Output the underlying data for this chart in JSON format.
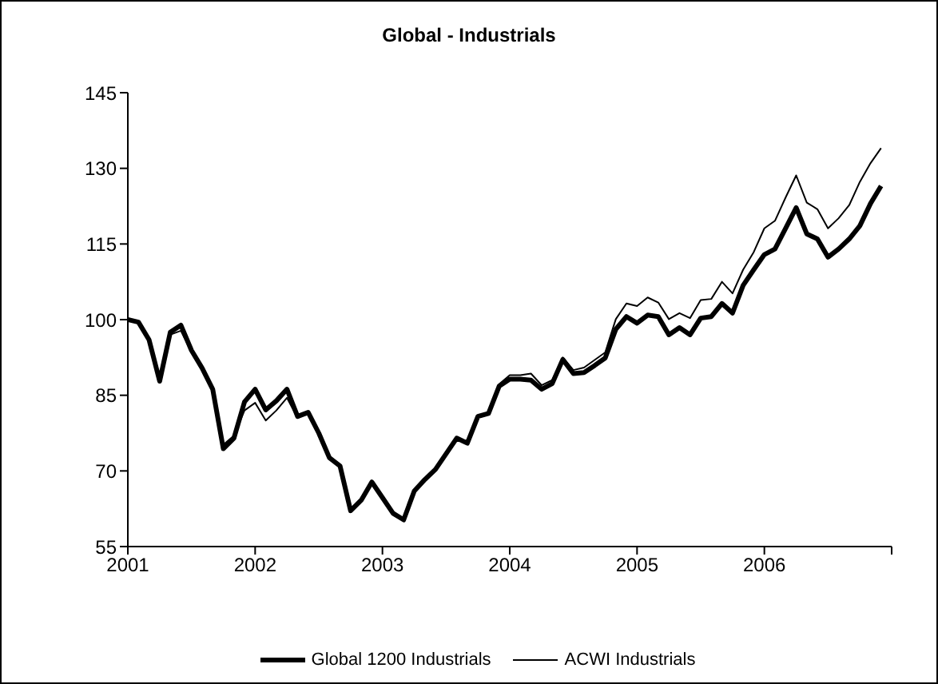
{
  "chart_data": {
    "type": "line",
    "title": "Global - Industrials",
    "x": [
      "2001-01",
      "2001-02",
      "2001-03",
      "2001-04",
      "2001-05",
      "2001-06",
      "2001-07",
      "2001-08",
      "2001-09",
      "2001-10",
      "2001-11",
      "2001-12",
      "2002-01",
      "2002-02",
      "2002-03",
      "2002-04",
      "2002-05",
      "2002-06",
      "2002-07",
      "2002-08",
      "2002-09",
      "2002-10",
      "2002-11",
      "2002-12",
      "2003-01",
      "2003-02",
      "2003-03",
      "2003-04",
      "2003-05",
      "2003-06",
      "2003-07",
      "2003-08",
      "2003-09",
      "2003-10",
      "2003-11",
      "2003-12",
      "2004-01",
      "2004-02",
      "2004-03",
      "2004-04",
      "2004-05",
      "2004-06",
      "2004-07",
      "2004-08",
      "2004-09",
      "2004-10",
      "2004-11",
      "2004-12",
      "2005-01",
      "2005-02",
      "2005-03",
      "2005-04",
      "2005-05",
      "2005-06",
      "2005-07",
      "2005-08",
      "2005-09",
      "2005-10",
      "2005-11",
      "2005-12",
      "2006-01",
      "2006-02",
      "2006-03",
      "2006-04",
      "2006-05",
      "2006-06",
      "2006-07",
      "2006-08",
      "2006-09",
      "2006-10",
      "2006-11",
      "2006-12"
    ],
    "series": [
      {
        "name": "Global 1200 Industrials",
        "color": "#000000",
        "values": [
          100,
          99.5,
          96,
          87.8,
          97.5,
          98.9,
          93.9,
          90.4,
          86.2,
          74.4,
          76.5,
          83.7,
          86.2,
          82.1,
          83.9,
          86.2,
          80.8,
          81.6,
          77.5,
          72.6,
          71,
          62.1,
          64.2,
          67.8,
          64.7,
          61.6,
          60.3,
          66,
          68.3,
          70.3,
          73.4,
          76.5,
          75.5,
          80.8,
          81.4,
          86.8,
          88.2,
          88.2,
          88,
          86.2,
          87.3,
          92.1,
          89.3,
          89.5,
          90.9,
          92.4,
          98.1,
          100.6,
          99.3,
          100.9,
          100.6,
          97,
          98.4,
          97,
          100.3,
          100.6,
          103.2,
          101.3,
          106.8,
          109.9,
          112.9,
          114,
          118.1,
          122.2,
          117,
          116,
          112.4,
          114,
          116,
          118.6,
          123,
          126.5
        ]
      },
      {
        "name": "ACWI Industrials",
        "color": "#000000",
        "values": [
          100,
          99.5,
          96,
          87.8,
          97,
          97.8,
          93.5,
          90,
          86,
          75.2,
          77,
          82,
          83.5,
          80,
          82,
          84.5,
          80.5,
          81.5,
          77.5,
          72.6,
          71,
          62.1,
          64.2,
          67.8,
          64.7,
          61.6,
          60.3,
          66,
          68.3,
          70.3,
          73.4,
          76.5,
          75.8,
          81,
          81.6,
          87.2,
          89,
          89,
          89.3,
          87,
          88,
          92.5,
          90,
          90.5,
          92,
          93.5,
          100.1,
          103.2,
          102.7,
          104.4,
          103.4,
          100.1,
          101.3,
          100.3,
          103.9,
          104.1,
          107.5,
          105.2,
          109.9,
          113.4,
          118.1,
          119.6,
          124.2,
          128.6,
          123.2,
          121.9,
          118.1,
          120.1,
          122.7,
          127.3,
          131,
          134
        ]
      }
    ],
    "xlim": [
      "2001-01",
      "2007-01"
    ],
    "xticks": [
      {
        "value": "2001-01",
        "label": "2001"
      },
      {
        "value": "2002-01",
        "label": "2002"
      },
      {
        "value": "2003-01",
        "label": "2003"
      },
      {
        "value": "2004-01",
        "label": "2004"
      },
      {
        "value": "2005-01",
        "label": "2005"
      },
      {
        "value": "2006-01",
        "label": "2006"
      },
      {
        "value": "2007-01",
        "label": null
      }
    ],
    "ylim": [
      55,
      145
    ],
    "yticks": [
      55,
      70,
      85,
      100,
      115,
      130,
      145
    ],
    "grid": false,
    "legend": "bottom",
    "marker": "none",
    "line_style": "solid"
  }
}
